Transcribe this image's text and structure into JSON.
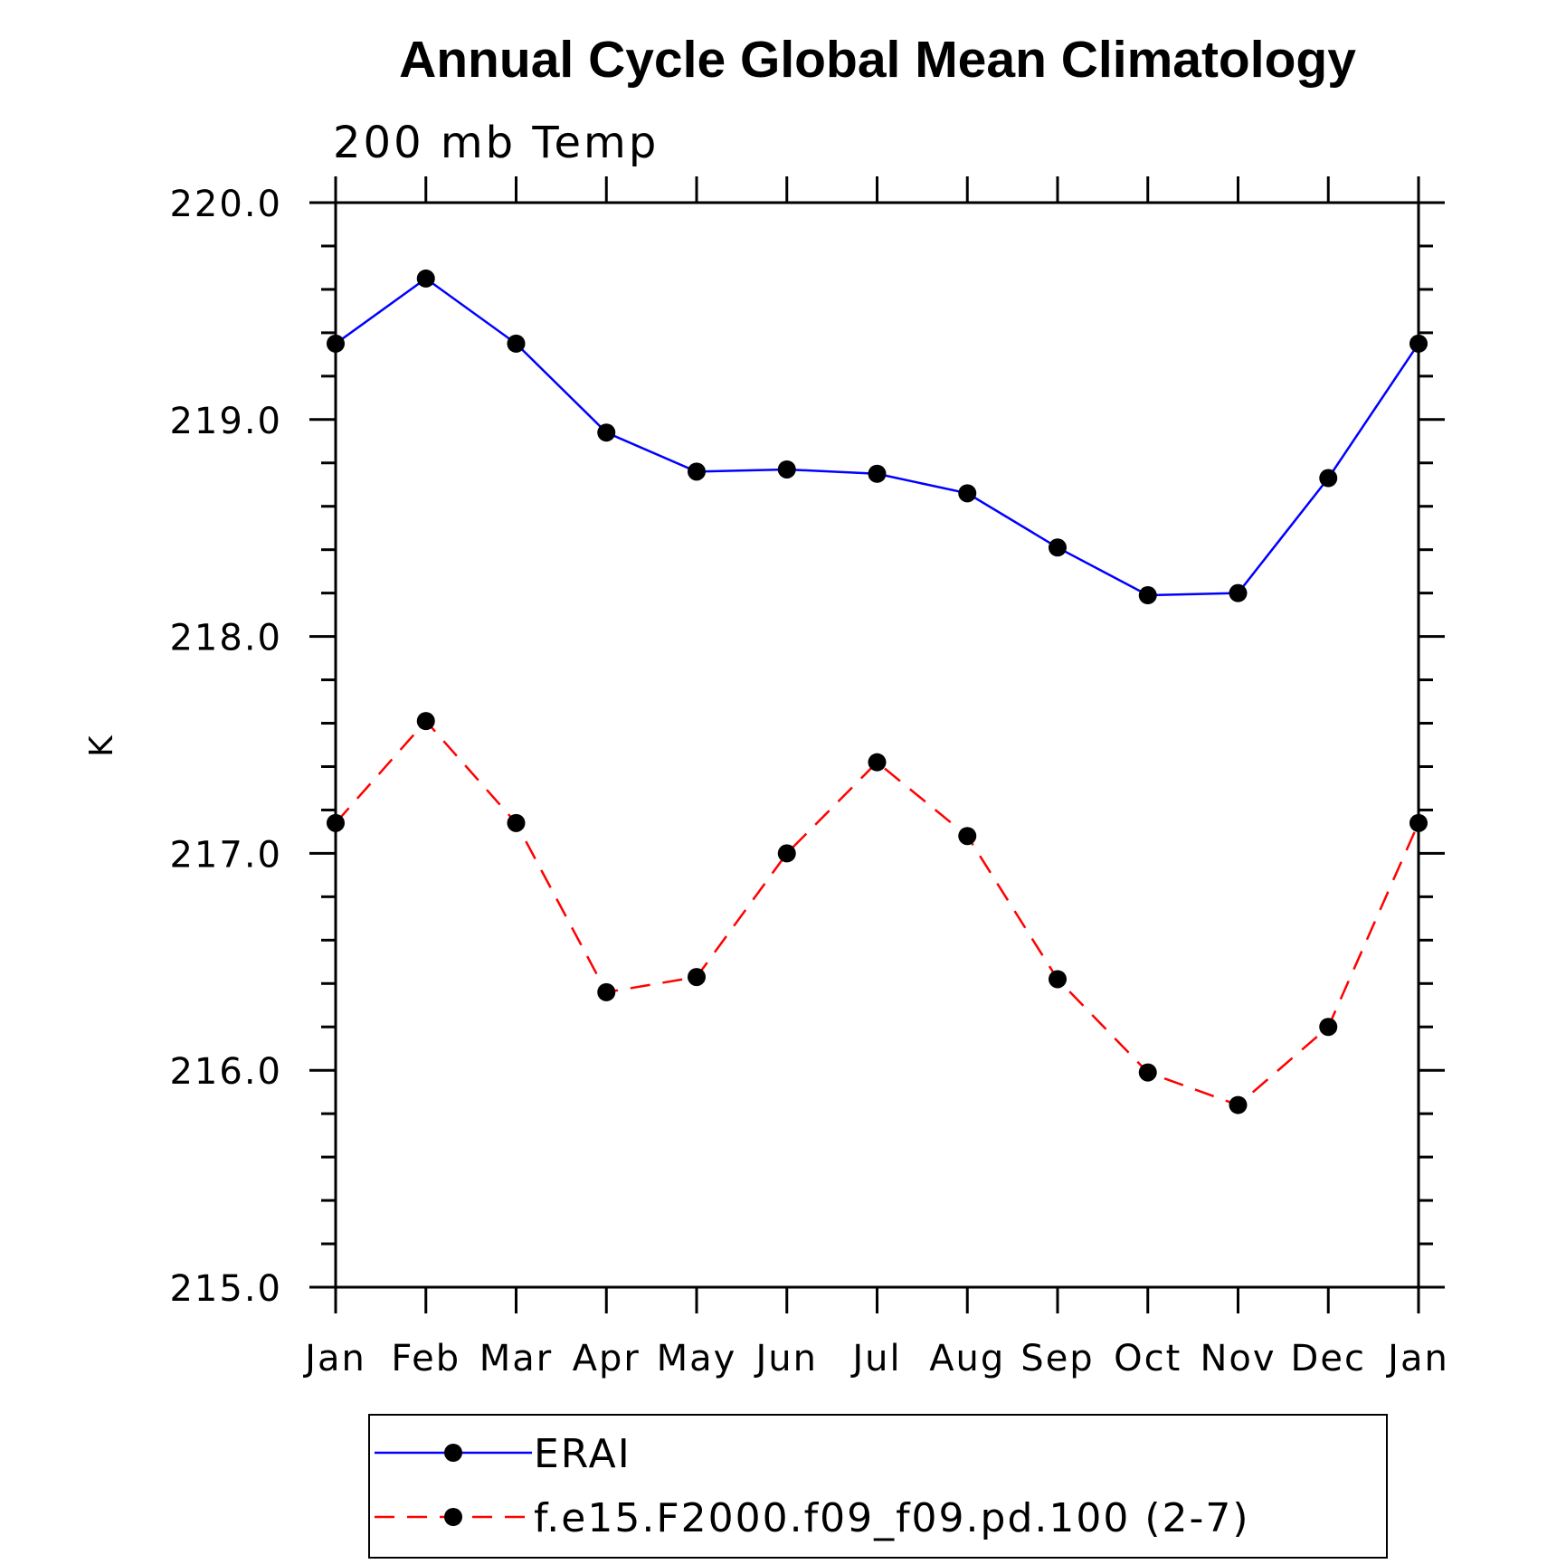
{
  "chart_data": {
    "type": "line",
    "title": "Annual Cycle Global Mean Climatology",
    "subtitle": "200 mb Temp",
    "xlabel": "",
    "ylabel": "K",
    "categories": [
      "Jan",
      "Feb",
      "Mar",
      "Apr",
      "May",
      "Jun",
      "Jul",
      "Aug",
      "Sep",
      "Oct",
      "Nov",
      "Dec",
      "Jan"
    ],
    "ylim": [
      215.0,
      220.0
    ],
    "yticks": [
      "215.0",
      "216.0",
      "217.0",
      "218.0",
      "219.0",
      "220.0"
    ],
    "grid": false,
    "legend_position": "bottom",
    "series": [
      {
        "name": "ERAI",
        "color": "#0000ff",
        "line_style": "solid",
        "marker": "circle",
        "values": [
          219.35,
          219.65,
          219.35,
          218.94,
          218.76,
          218.77,
          218.75,
          218.66,
          218.41,
          218.19,
          218.2,
          218.73,
          219.35
        ]
      },
      {
        "name": "f.e15.F2000.f09_f09.pd.100 (2-7)",
        "color": "#ff0000",
        "line_style": "dashed",
        "marker": "circle",
        "values": [
          217.14,
          217.61,
          217.14,
          216.36,
          216.43,
          217.0,
          217.42,
          217.08,
          216.42,
          215.99,
          215.84,
          216.2,
          217.14
        ]
      }
    ]
  }
}
